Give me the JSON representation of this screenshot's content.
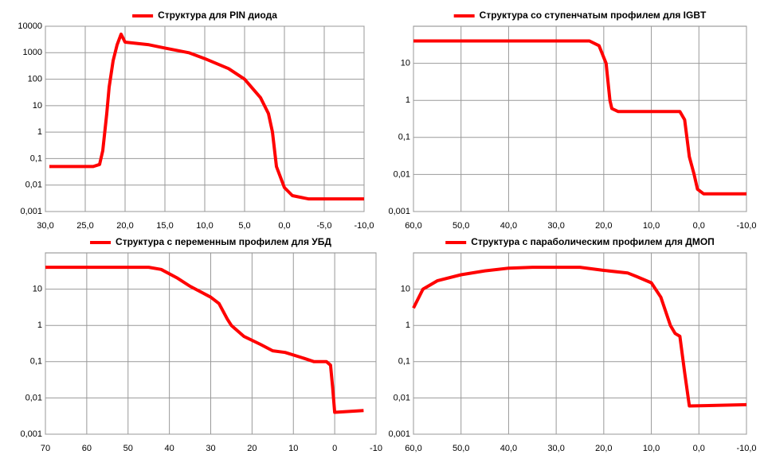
{
  "chart_data": [
    {
      "type": "line",
      "yscale": "log",
      "grid": true,
      "legend": "top",
      "xlim": [
        30,
        -10
      ],
      "ylim": [
        0.001,
        10000
      ],
      "xticks": [
        {
          "value": 30,
          "label": "30,0"
        },
        {
          "value": 25,
          "label": "25,0"
        },
        {
          "value": 20,
          "label": "20,0"
        },
        {
          "value": 15,
          "label": "15,0"
        },
        {
          "value": 10,
          "label": "10,0"
        },
        {
          "value": 5,
          "label": "5,0"
        },
        {
          "value": 0,
          "label": "0,0"
        },
        {
          "value": -5,
          "label": "-5,0"
        },
        {
          "value": -10,
          "label": "-10,0"
        }
      ],
      "yticks": [
        {
          "value": 0.001,
          "label": "0,001"
        },
        {
          "value": 0.01,
          "label": "0,01"
        },
        {
          "value": 0.1,
          "label": "0,1"
        },
        1,
        10,
        100,
        1000,
        10000
      ],
      "x": [
        29.5,
        24,
        23.2,
        22.8,
        22.3,
        22,
        21.5,
        21,
        20.5,
        20,
        17,
        15,
        12,
        10,
        7,
        5,
        3,
        2,
        1.5,
        1,
        0,
        -1,
        -3,
        -10
      ],
      "series": [
        {
          "name": "Структура для PIN диода",
          "color": "#ff0000",
          "values": [
            0.05,
            0.05,
            0.06,
            0.2,
            5,
            50,
            500,
            2000,
            5000,
            2500,
            2000,
            1500,
            1000,
            600,
            250,
            100,
            20,
            5,
            1,
            0.05,
            0.008,
            0.004,
            0.003,
            0.003
          ]
        }
      ]
    },
    {
      "type": "line",
      "yscale": "log",
      "grid": true,
      "legend": "top",
      "xlim": [
        60,
        -10
      ],
      "ylim": [
        0.001,
        100
      ],
      "xticks": [
        {
          "value": 60,
          "label": "60,0"
        },
        {
          "value": 50,
          "label": "50,0"
        },
        {
          "value": 40,
          "label": "40,0"
        },
        {
          "value": 30,
          "label": "30,0"
        },
        {
          "value": 20,
          "label": "20,0"
        },
        {
          "value": 10,
          "label": "10,0"
        },
        {
          "value": 0,
          "label": "0,0"
        },
        {
          "value": -10,
          "label": "-10,0"
        }
      ],
      "yticks": [
        {
          "value": 0.001,
          "label": "0,001"
        },
        {
          "value": 0.01,
          "label": "0,01"
        },
        {
          "value": 0.1,
          "label": "0,1"
        },
        1,
        10
      ],
      "x": [
        60,
        23,
        21,
        19.5,
        18.7,
        18.3,
        17,
        4,
        3,
        2,
        1,
        0.3,
        -1,
        -10
      ],
      "series": [
        {
          "name": "Структура со ступенчатым профилем для IGBT",
          "color": "#ff0000",
          "values": [
            40,
            40,
            30,
            10,
            1,
            0.6,
            0.5,
            0.5,
            0.3,
            0.03,
            0.01,
            0.004,
            0.003,
            0.003
          ]
        }
      ]
    },
    {
      "type": "line",
      "yscale": "log",
      "grid": true,
      "legend": "top",
      "xlim": [
        70,
        -10
      ],
      "ylim": [
        0.001,
        100
      ],
      "xticks": [
        70,
        60,
        50,
        40,
        30,
        20,
        10,
        0,
        -10
      ],
      "yticks": [
        {
          "value": 0.001,
          "label": "0,001"
        },
        {
          "value": 0.01,
          "label": "0,01"
        },
        {
          "value": 0.1,
          "label": "0,1"
        },
        1,
        10
      ],
      "x": [
        70,
        45,
        42,
        38,
        35,
        30,
        28,
        26,
        25,
        22,
        18,
        15,
        12,
        8,
        5,
        2,
        1,
        0.5,
        0,
        -7
      ],
      "series": [
        {
          "name": "Структура с переменным  профилем для УБД",
          "color": "#ff0000",
          "values": [
            40,
            40,
            35,
            20,
            12,
            6,
            4,
            1.5,
            1,
            0.5,
            0.3,
            0.2,
            0.18,
            0.13,
            0.1,
            0.1,
            0.08,
            0.02,
            0.004,
            0.0045
          ]
        }
      ]
    },
    {
      "type": "line",
      "yscale": "log",
      "grid": true,
      "legend": "top",
      "xlim": [
        60,
        -10
      ],
      "ylim": [
        0.001,
        100
      ],
      "xticks": [
        {
          "value": 60,
          "label": "60,0"
        },
        {
          "value": 50,
          "label": "50,0"
        },
        {
          "value": 40,
          "label": "40,0"
        },
        {
          "value": 30,
          "label": "30,0"
        },
        {
          "value": 20,
          "label": "20,0"
        },
        {
          "value": 10,
          "label": "10,0"
        },
        {
          "value": 0,
          "label": "0,0"
        },
        {
          "value": -10,
          "label": "-10,0"
        }
      ],
      "yticks": [
        {
          "value": 0.001,
          "label": "0,001"
        },
        {
          "value": 0.01,
          "label": "0,01"
        },
        {
          "value": 0.1,
          "label": "0,1"
        },
        1,
        10
      ],
      "x": [
        60,
        58,
        55,
        50,
        45,
        40,
        35,
        25,
        20,
        15,
        13,
        10,
        8,
        6,
        5,
        4,
        3,
        2,
        -10
      ],
      "series": [
        {
          "name": "Структура с параболическим профилем для ДМОП",
          "color": "#ff0000",
          "values": [
            3,
            10,
            17,
            25,
            32,
            38,
            40,
            40,
            33,
            28,
            22,
            15,
            6,
            1,
            0.6,
            0.5,
            0.05,
            0.006,
            0.0065
          ]
        }
      ]
    }
  ]
}
